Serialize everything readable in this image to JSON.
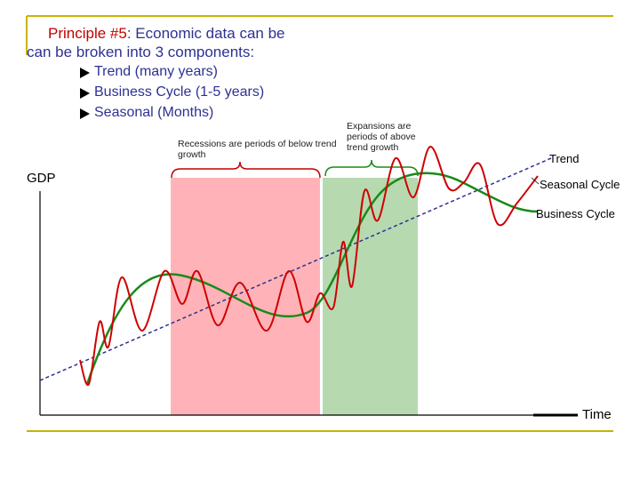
{
  "header": {
    "title_prefix": "Principle #5",
    "title_rest": ": Economic data can be",
    "title_line2": "can be broken into 3 components:"
  },
  "bullets": [
    "Trend (many years)",
    "Business Cycle (1-5 years)",
    "Seasonal (Months)"
  ],
  "annotations": {
    "recessions": "Recessions are periods of below trend growth",
    "expansions": "Expansions are periods of above trend growth"
  },
  "labels": {
    "y_axis": "GDP",
    "x_axis": "Time",
    "trend": "Trend",
    "seasonal": "Seasonal Cycle",
    "business": "Business Cycle"
  }
}
